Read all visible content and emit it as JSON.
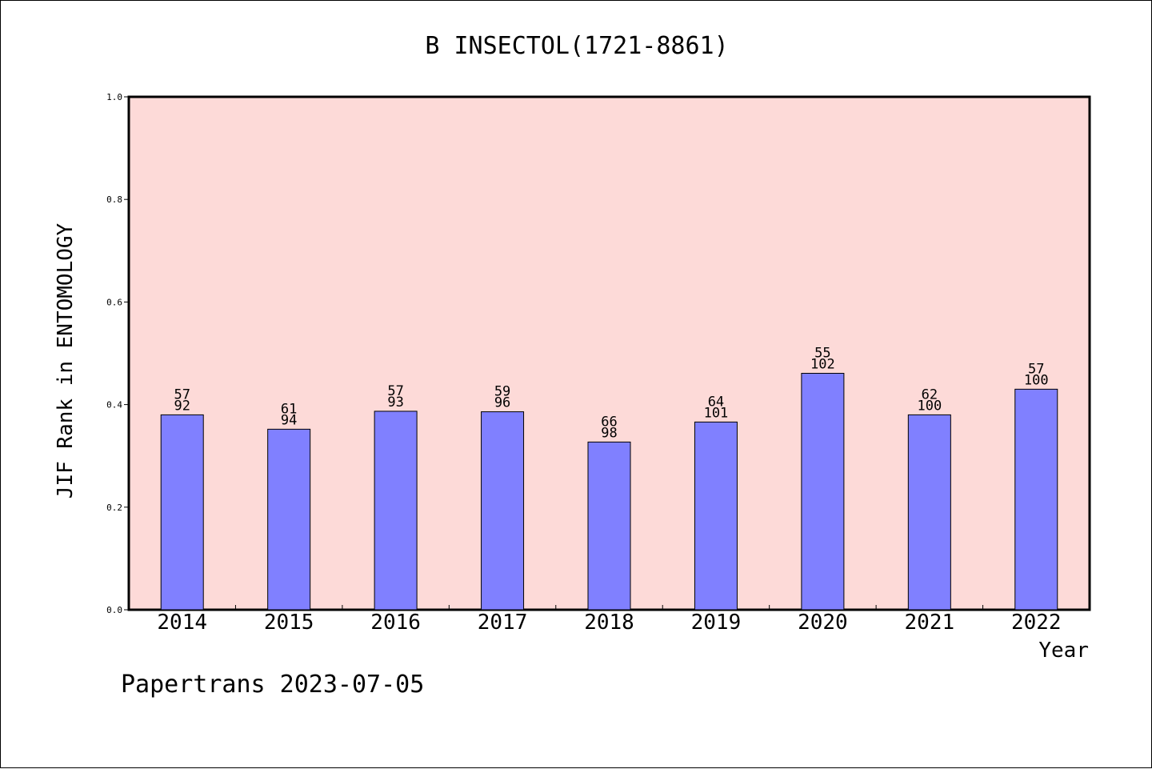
{
  "chart_data": {
    "type": "bar",
    "title": "B INSECTOL(1721-8861)",
    "xlabel": "Year",
    "ylabel": "JIF Rank in ENTOMOLOGY",
    "ylim": [
      0,
      1.0
    ],
    "yticks": [
      "0.0",
      "0.2",
      "0.4",
      "0.6",
      "0.8",
      "1.0"
    ],
    "categories": [
      "2014",
      "2015",
      "2016",
      "2017",
      "2018",
      "2019",
      "2020",
      "2021",
      "2022"
    ],
    "values": [
      0.38,
      0.352,
      0.387,
      0.386,
      0.327,
      0.366,
      0.461,
      0.38,
      0.43
    ],
    "rank": [
      57,
      61,
      57,
      59,
      66,
      64,
      55,
      62,
      57
    ],
    "total": [
      92,
      94,
      93,
      96,
      98,
      101,
      102,
      100,
      100
    ],
    "grid": false,
    "legend": "none",
    "colors": {
      "plot_bg": "#fddad8",
      "bar_fill": "#8080ff",
      "bar_stroke": "#000000"
    }
  },
  "footer": {
    "credit": "Papertrans 2023-07-05"
  }
}
